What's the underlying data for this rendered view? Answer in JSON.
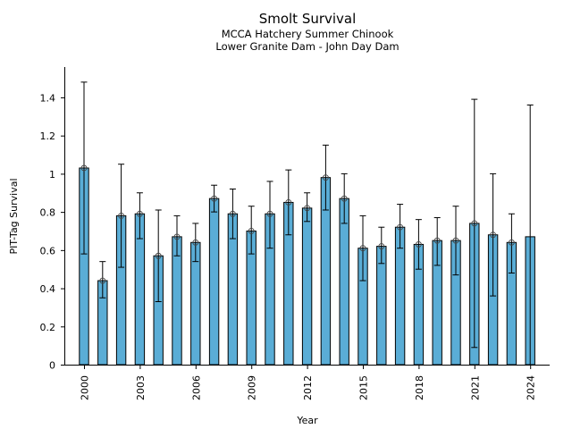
{
  "chart_data": {
    "type": "bar",
    "title": "Smolt Survival",
    "subtitle": [
      "MCCA Hatchery Summer Chinook",
      "Lower Granite Dam - John Day Dam"
    ],
    "xlabel": "Year",
    "ylabel": "PIT-Tag Survival",
    "ylim": [
      0,
      1.55
    ],
    "yticks": [
      0,
      0.2,
      0.4,
      0.6,
      0.8,
      1,
      1.2,
      1.4
    ],
    "ytick_labels": [
      "0",
      "0.2",
      "0.4",
      "0.6",
      "0.8",
      "1",
      "1.2",
      "1.4"
    ],
    "xticks": [
      "2000",
      "2003",
      "2006",
      "2009",
      "2012",
      "2015",
      "2018",
      "2021",
      "2024"
    ],
    "grid": false,
    "bar_color": "#5aadd6",
    "categories": [
      2000,
      2001,
      2002,
      2003,
      2004,
      2005,
      2006,
      2007,
      2008,
      2009,
      2010,
      2011,
      2012,
      2013,
      2014,
      2015,
      2016,
      2017,
      2018,
      2019,
      2020,
      2021,
      2022,
      2023,
      2024
    ],
    "values": [
      1.03,
      0.44,
      0.78,
      0.79,
      0.57,
      0.67,
      0.64,
      0.87,
      0.79,
      0.7,
      0.79,
      0.85,
      0.82,
      0.98,
      0.87,
      0.61,
      0.62,
      0.72,
      0.63,
      0.65,
      0.65,
      0.74,
      0.68,
      0.64,
      0.67
    ],
    "lower": [
      0.58,
      0.35,
      0.51,
      0.66,
      0.33,
      0.57,
      0.54,
      0.8,
      0.66,
      0.58,
      0.61,
      0.68,
      0.75,
      0.81,
      0.74,
      0.44,
      0.53,
      0.61,
      0.5,
      0.52,
      0.47,
      0.09,
      0.36,
      0.48,
      0.0
    ],
    "upper": [
      1.48,
      0.54,
      1.05,
      0.9,
      0.81,
      0.78,
      0.74,
      0.94,
      0.92,
      0.83,
      0.96,
      1.02,
      0.9,
      1.15,
      1.0,
      0.78,
      0.72,
      0.84,
      0.76,
      0.77,
      0.83,
      1.39,
      1.0,
      0.79,
      1.36
    ],
    "marker": [
      true,
      true,
      true,
      true,
      true,
      true,
      true,
      true,
      true,
      true,
      true,
      true,
      true,
      true,
      true,
      true,
      true,
      true,
      true,
      true,
      true,
      true,
      true,
      true,
      false
    ]
  }
}
